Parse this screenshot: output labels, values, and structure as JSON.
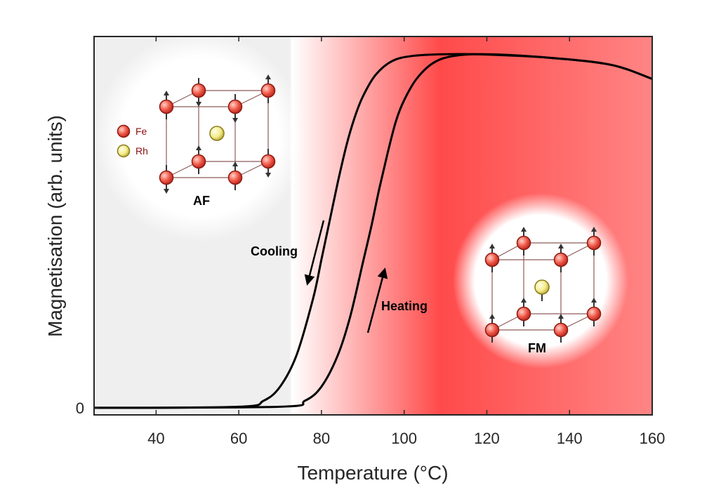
{
  "chart_data": {
    "type": "line",
    "title": "",
    "xlabel": "Temperature (°C)",
    "ylabel": "Magnetisation (arb. units)",
    "xlim": [
      25,
      160
    ],
    "ylim": [
      -0.02,
      1.05
    ],
    "x_ticks": [
      40,
      60,
      80,
      100,
      120,
      140,
      160
    ],
    "y_ticks": [
      {
        "value": 0,
        "label": "0"
      }
    ],
    "grid": false,
    "series": [
      {
        "x": [
          25,
          60,
          66,
          70,
          74,
          78,
          80,
          82,
          84,
          86,
          88,
          90,
          93,
          97,
          102,
          110,
          120,
          135,
          150,
          160
        ],
        "y": [
          0,
          0.003,
          0.02,
          0.06,
          0.15,
          0.31,
          0.42,
          0.53,
          0.64,
          0.74,
          0.82,
          0.88,
          0.94,
          0.98,
          0.995,
          1.0,
          0.999,
          0.99,
          0.97,
          0.93
        ]
      },
      {
        "x": [
          25,
          70,
          76,
          80,
          84,
          87,
          90,
          92,
          94,
          96,
          98,
          100,
          103,
          107,
          112,
          120,
          135,
          150,
          160
        ],
        "y": [
          0,
          0.003,
          0.02,
          0.06,
          0.15,
          0.26,
          0.41,
          0.51,
          0.62,
          0.72,
          0.81,
          0.87,
          0.93,
          0.975,
          0.995,
          1.0,
          0.99,
          0.97,
          0.93
        ]
      }
    ],
    "annotations": {
      "cooling": "Cooling",
      "heating": "Heating",
      "af": "AF",
      "fm": "FM"
    },
    "legend": {
      "fe": "Fe",
      "rh": "Rh"
    },
    "colors": {
      "low_region": "#efefef",
      "high_region": "#ff4a4a",
      "fe_atom": "#f05a4a",
      "rh_atom": "#f3ec8a",
      "curve": "#000000"
    }
  }
}
